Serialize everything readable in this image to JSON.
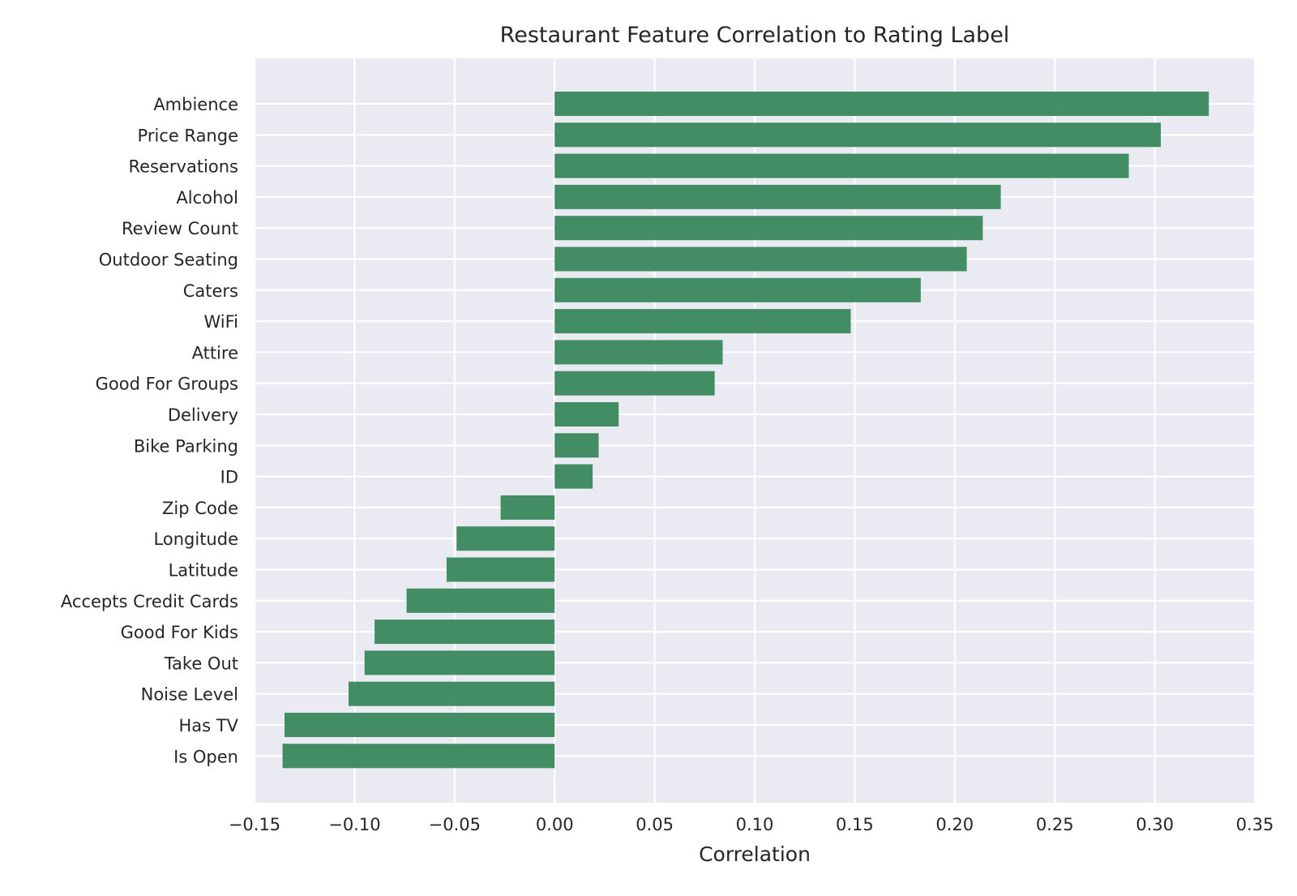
{
  "chart_data": {
    "type": "bar",
    "orientation": "horizontal",
    "title": "Restaurant Feature Correlation to Rating Label",
    "xlabel": "Correlation",
    "ylabel": "",
    "xlim": [
      -0.15,
      0.35
    ],
    "xticks": [
      "−0.15",
      "−0.10",
      "−0.05",
      "0.00",
      "0.05",
      "0.10",
      "0.15",
      "0.20",
      "0.25",
      "0.30",
      "0.35"
    ],
    "xtick_values": [
      -0.15,
      -0.1,
      -0.05,
      0.0,
      0.05,
      0.1,
      0.15,
      0.2,
      0.25,
      0.3,
      0.35
    ],
    "grid": true,
    "legend": "none",
    "bar_color": "#438d64",
    "background_color": "#eaeaf2",
    "grid_color": "#ffffff",
    "categories": [
      "Ambience",
      "Price Range",
      "Reservations",
      "Alcohol",
      "Review Count",
      "Outdoor Seating",
      "Caters",
      "WiFi",
      "Attire",
      "Good For Groups",
      "Delivery",
      "Bike Parking",
      "ID",
      "Zip Code",
      "Longitude",
      "Latitude",
      "Accepts Credit Cards",
      "Good For Kids",
      "Take Out",
      "Noise Level",
      "Has TV",
      "Is Open"
    ],
    "values": [
      0.327,
      0.303,
      0.287,
      0.223,
      0.214,
      0.206,
      0.183,
      0.148,
      0.084,
      0.08,
      0.032,
      0.022,
      0.019,
      -0.027,
      -0.049,
      -0.054,
      -0.074,
      -0.09,
      -0.095,
      -0.103,
      -0.135,
      -0.136
    ]
  }
}
